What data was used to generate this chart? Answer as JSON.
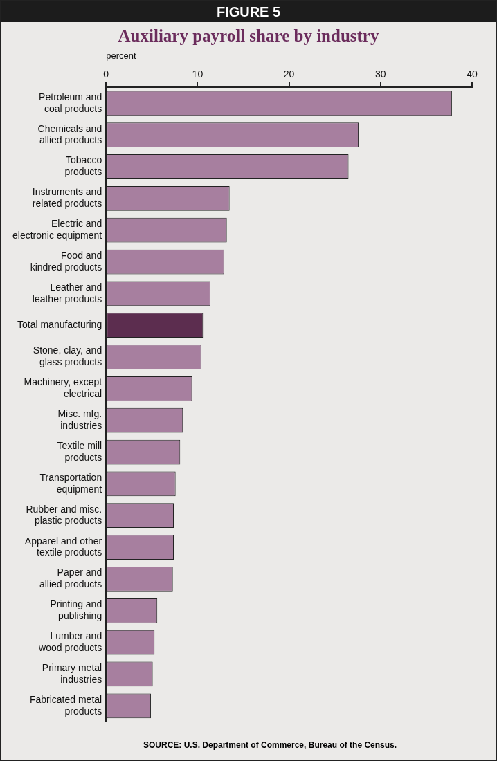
{
  "chart_data": {
    "type": "bar",
    "orientation": "horizontal",
    "title": "Auxiliary payroll share by industry",
    "xlabel": "percent",
    "categories": [
      "Petroleum and\ncoal products",
      "Chemicals and\nallied products",
      "Tobacco\nproducts",
      "Instruments and\nrelated products",
      "Electric and\nelectronic equipment",
      "Food and\nkindred products",
      "Leather and\nleather products",
      "Total manufacturing",
      "Stone, clay, and\nglass products",
      "Machinery, except\nelectrical",
      "Misc. mfg.\nindustries",
      "Textile mill\nproducts",
      "Transportation\nequipment",
      "Rubber and misc.\nplastic products",
      "Apparel and other\ntextile products",
      "Paper and\nallied products",
      "Printing and\npublishing",
      "Lumber and\nwood products",
      "Primary metal\nindustries",
      "Fabricated metal\nproducts"
    ],
    "values": [
      37.8,
      27.6,
      26.5,
      13.5,
      13.2,
      12.9,
      11.4,
      10.6,
      10.4,
      9.4,
      8.4,
      8.1,
      7.6,
      7.4,
      7.4,
      7.3,
      5.6,
      5.3,
      5.1,
      4.9
    ],
    "colors": [
      "#a77f9f",
      "#a77f9f",
      "#a77f9f",
      "#a77f9f",
      "#a77f9f",
      "#a77f9f",
      "#a77f9f",
      "#5c2d4f",
      "#a77f9f",
      "#a77f9f",
      "#a77f9f",
      "#a77f9f",
      "#a77f9f",
      "#a77f9f",
      "#a77f9f",
      "#a77f9f",
      "#a77f9f",
      "#a77f9f",
      "#a77f9f",
      "#a77f9f"
    ],
    "xlim": [
      0,
      40
    ],
    "xticks": [
      0,
      10,
      20,
      30,
      40
    ],
    "grid": false,
    "legend": false,
    "annotations": [
      "FIGURE 5",
      "SOURCE: U.S. Department of Commerce, Bureau of the Census."
    ]
  }
}
